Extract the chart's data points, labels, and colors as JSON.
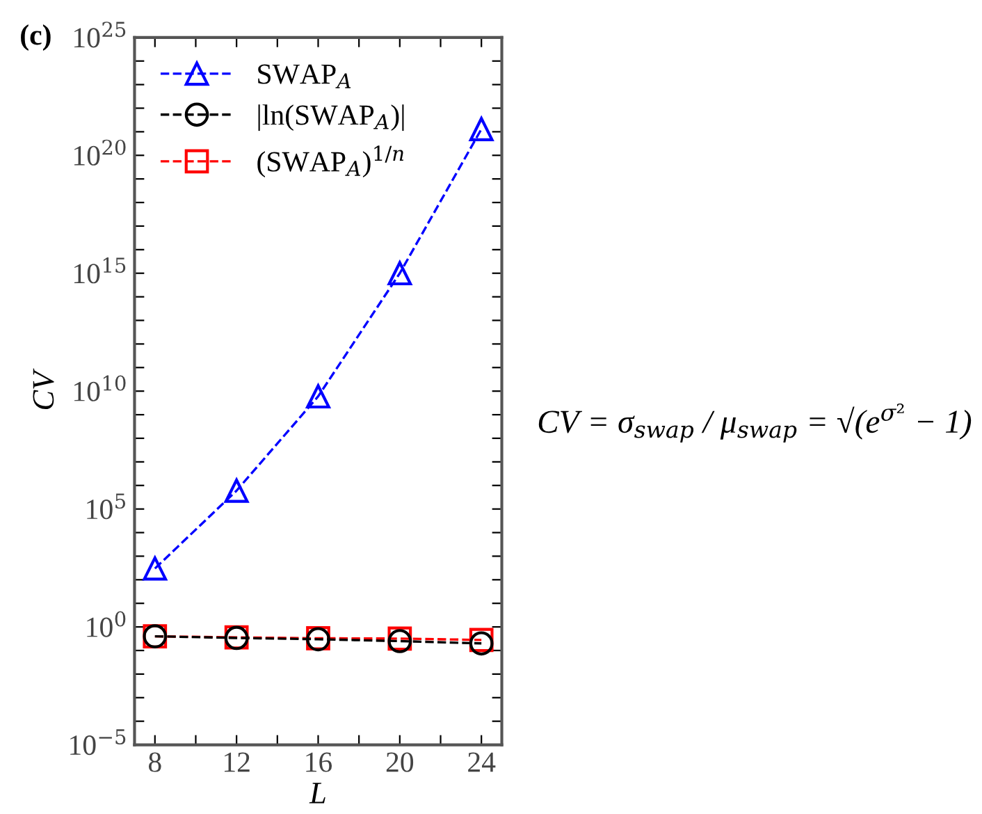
{
  "chart_data": {
    "type": "line",
    "xlabel": "L",
    "ylabel": "CV",
    "x": [
      8,
      12,
      16,
      20,
      24
    ],
    "series": [
      {
        "name": "SWAP$_{A}$",
        "color": "#0000ff",
        "marker": "triangle",
        "values": [
          300,
          600000.0,
          6000000000.0,
          1000000000000000.0,
          1.3e+21
        ]
      },
      {
        "name": "|ln(SWAP$_{A}$)|",
        "color": "#000000",
        "marker": "circle",
        "values": [
          0.4,
          0.34,
          0.3,
          0.25,
          0.2
        ]
      },
      {
        "name": "(SWAP$_{A}$)$^{1/n}$",
        "color": "#ff0000",
        "marker": "square",
        "values": [
          0.4,
          0.36,
          0.33,
          0.32,
          0.28
        ]
      }
    ],
    "line_style": "dashed",
    "log": "y",
    "grid": false,
    "legend": "top left",
    "xlim": [
      7,
      25
    ],
    "xticks": [
      8,
      {
        "value": 10,
        "label": null
      },
      12,
      {
        "value": 14,
        "label": null
      },
      16,
      {
        "value": 18,
        "label": null
      },
      20,
      {
        "value": 22,
        "label": null
      },
      24
    ],
    "ylim": [
      1e-05,
      1e+25
    ],
    "yticks": [
      {
        "value": 1e-05,
        "label": "10$^{−5}$"
      },
      {
        "value": 0.0001,
        "label": null
      },
      {
        "value": 0.001,
        "label": null
      },
      {
        "value": 0.01,
        "label": null
      },
      {
        "value": 0.1,
        "label": null
      },
      {
        "value": 1,
        "label": "10$^{0}$"
      },
      {
        "value": 10,
        "label": null
      },
      {
        "value": 100,
        "label": null
      },
      {
        "value": 1000.0,
        "label": null
      },
      {
        "value": 10000.0,
        "label": null
      },
      {
        "value": 100000.0,
        "label": "10$^{5}$"
      },
      {
        "value": 1000000.0,
        "label": null
      },
      {
        "value": 10000000.0,
        "label": null
      },
      {
        "value": 100000000.0,
        "label": null
      },
      {
        "value": 1000000000.0,
        "label": null
      },
      {
        "value": 10000000000.0,
        "label": "10$^{10}$"
      },
      {
        "value": 100000000000.0,
        "label": null
      },
      {
        "value": 1000000000000.0,
        "label": null
      },
      {
        "value": 10000000000000.0,
        "label": null
      },
      {
        "value": 100000000000000.0,
        "label": null
      },
      {
        "value": 1000000000000000.0,
        "label": "10$^{15}$"
      },
      {
        "value": 1e+16,
        "label": null
      },
      {
        "value": 1e+17,
        "label": null
      },
      {
        "value": 1e+18,
        "label": null
      },
      {
        "value": 1e+19,
        "label": null
      },
      {
        "value": 1e+20,
        "label": "10$^{20}$"
      },
      {
        "value": 1e+21,
        "label": null
      },
      {
        "value": 1e+22,
        "label": null
      },
      {
        "value": 1e+23,
        "label": null
      },
      {
        "value": 1e+24,
        "label": null
      },
      {
        "value": 1e+25,
        "label": "10$^{25}$"
      }
    ],
    "annotations": [
      "(c)",
      "CV = σ$_{swap}$ / μ$_{swap}$ = √(e$^{σ²}$ − 1)"
    ]
  }
}
